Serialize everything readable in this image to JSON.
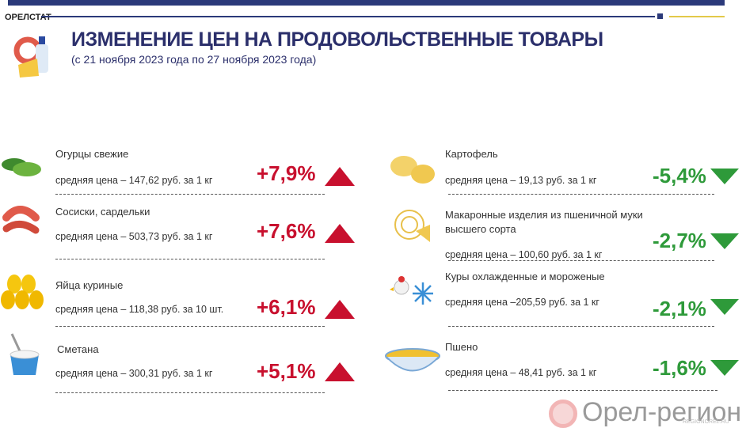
{
  "header": {
    "brand": "ОРЕЛСТАТ",
    "title": "ИЗМЕНЕНИЕ ЦЕН НА ПРОДОВОЛЬСТВЕННЫЕ ТОВАРЫ",
    "subtitle": "(с 21 ноября 2023 года по 27 ноября 2023 года)"
  },
  "colors": {
    "up": "#c8102e",
    "down": "#2e9a3a",
    "title": "#2b2f6b"
  },
  "increases": [
    {
      "name": "Огурцы свежие",
      "price": "средняя цена – 147,62 руб. за 1 кг",
      "change": "+7,9%",
      "icon": "cucumber-icon"
    },
    {
      "name": "Сосиски, сардельки",
      "price": "средняя цена – 503,73 руб. за 1 кг",
      "change": "+7,6%",
      "icon": "sausage-icon"
    },
    {
      "name": "Яйца куриные",
      "price": "средняя цена – 118,38 руб. за 10 шт.",
      "change": "+6,1%",
      "icon": "eggs-icon"
    },
    {
      "name": "Сметана",
      "price": "средняя цена – 300,31 руб. за 1 кг",
      "change": "+5,1%",
      "icon": "sour-cream-icon"
    }
  ],
  "decreases": [
    {
      "name": "Картофель",
      "price": "средняя цена – 19,13 руб. за 1 кг",
      "change": "-5,4%",
      "icon": "potato-icon"
    },
    {
      "name": "Макаронные изделия из пшеничной муки высшего сорта",
      "price": "средняя цена –  100,60 руб. за  1 кг",
      "change": "-2,7%",
      "icon": "pasta-icon"
    },
    {
      "name": "Куры охлажденные и мороженые",
      "price": "средняя цена –205,59 руб. за 1 кг",
      "change": "-2,1%",
      "icon": "chicken-icon"
    },
    {
      "name": "Пшено",
      "price": "средняя цена – 48,41 руб. за 1 кг",
      "change": "-1,6%",
      "icon": "millet-icon"
    }
  ],
  "watermark": {
    "text": "Орел-регион",
    "url": "REGIONOREL.RU"
  }
}
